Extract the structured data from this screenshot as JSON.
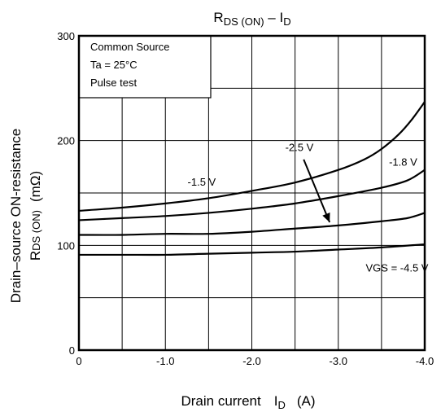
{
  "chart_data": {
    "type": "line",
    "title": {
      "main": "R",
      "main_sub": "DS (ON)",
      "sep": " – ",
      "var": "I",
      "var_sub": "D"
    },
    "xlabel": {
      "prefix": "Drain current",
      "var": "I",
      "var_sub": "D",
      "unit": "(A)"
    },
    "ylabel": {
      "line1": "Drain–source ON-resistance",
      "line2_var": "R",
      "line2_sub": "DS (ON)",
      "line2_unit": "(mΩ)"
    },
    "xlim": [
      0,
      -4.0
    ],
    "ylim": [
      0,
      300
    ],
    "x_ticks": [
      "0",
      "-1.0",
      "-2.0",
      "-3.0",
      "-4.0"
    ],
    "y_ticks": [
      "0",
      "100",
      "200",
      "300"
    ],
    "grid": true,
    "conditions": [
      "Common Source",
      "Ta = 25°C",
      "Pulse test"
    ],
    "series": [
      {
        "name": "-1.5 V",
        "x": [
          0,
          -0.5,
          -1.0,
          -1.5,
          -2.0,
          -2.5,
          -3.0,
          -3.3,
          -3.5,
          -3.7,
          -3.85,
          -4.0
        ],
        "y": [
          133,
          136,
          140,
          145,
          152,
          160,
          172,
          182,
          192,
          206,
          220,
          237
        ]
      },
      {
        "name": "-1.8 V",
        "x": [
          0,
          -0.5,
          -1.0,
          -1.5,
          -2.0,
          -2.5,
          -3.0,
          -3.5,
          -3.8,
          -4.0
        ],
        "y": [
          124,
          126,
          128,
          131,
          135,
          140,
          147,
          155,
          162,
          172
        ]
      },
      {
        "name": "-2.5 V",
        "x": [
          0,
          -0.5,
          -1.0,
          -1.5,
          -2.0,
          -2.5,
          -3.0,
          -3.5,
          -3.8,
          -4.0
        ],
        "y": [
          110,
          110,
          111,
          111,
          113,
          116,
          119,
          123,
          126,
          131
        ]
      },
      {
        "name": "VGS = -4.5 V",
        "x": [
          0,
          -0.5,
          -1.0,
          -1.5,
          -2.0,
          -2.5,
          -3.0,
          -3.5,
          -4.0
        ],
        "y": [
          91,
          91,
          91,
          92,
          93,
          94,
          96,
          98,
          101
        ]
      }
    ],
    "annotations": [
      {
        "text": "-1.5 V",
        "x": -1.42,
        "y": 157
      },
      {
        "text": "-1.8 V",
        "x": -3.75,
        "y": 176
      },
      {
        "text": "-2.5 V",
        "x": -2.55,
        "y": 190
      },
      {
        "text": "VGS = -4.5 V",
        "x": -3.68,
        "y": 75
      }
    ],
    "arrow": {
      "from": [
        -2.6,
        182
      ],
      "to": [
        -2.9,
        122
      ]
    }
  }
}
